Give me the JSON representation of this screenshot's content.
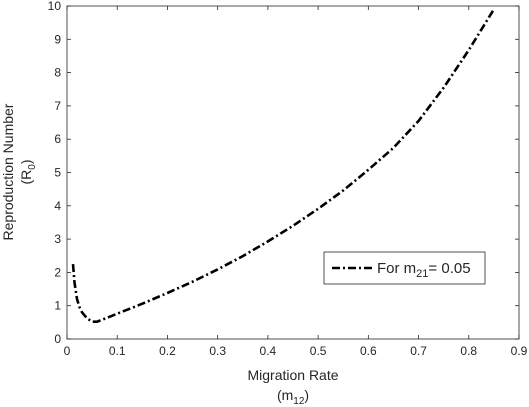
{
  "chart_data": {
    "type": "line",
    "xlabel": "Migration Rate",
    "xlabel_sub": {
      "base": "(m",
      "sub": "12",
      "end": ")"
    },
    "ylabel": "Reproduction Number",
    "ylabel_sub": {
      "base": "(R",
      "sub": "0",
      "end": ")"
    },
    "xlim": [
      0,
      0.9
    ],
    "ylim": [
      0,
      10
    ],
    "x_ticks": [
      "0",
      "0.1",
      "0.2",
      "0.3",
      "0.4",
      "0.5",
      "0.6",
      "0.7",
      "0.8",
      "0.9"
    ],
    "y_ticks": [
      "0",
      "1",
      "2",
      "3",
      "4",
      "5",
      "6",
      "7",
      "8",
      "9",
      "10"
    ],
    "grid": false,
    "legend_position": "right",
    "series": [
      {
        "name": "For m21= 0.05",
        "label": {
          "base": "For m",
          "sub": "21",
          "end": "= 0.05"
        },
        "style": "dash-dot",
        "color": "#000000",
        "x": [
          0.012,
          0.015,
          0.02,
          0.025,
          0.03,
          0.04,
          0.05,
          0.06,
          0.07,
          0.08,
          0.1,
          0.12,
          0.15,
          0.2,
          0.25,
          0.3,
          0.35,
          0.4,
          0.45,
          0.5,
          0.55,
          0.6,
          0.65,
          0.7,
          0.75,
          0.8,
          0.85
        ],
        "y": [
          2.25,
          1.7,
          1.2,
          0.95,
          0.8,
          0.62,
          0.52,
          0.52,
          0.58,
          0.64,
          0.76,
          0.88,
          1.06,
          1.38,
          1.72,
          2.09,
          2.49,
          2.93,
          3.4,
          3.91,
          4.46,
          5.08,
          5.74,
          6.55,
          7.55,
          8.68,
          9.9
        ]
      }
    ]
  }
}
